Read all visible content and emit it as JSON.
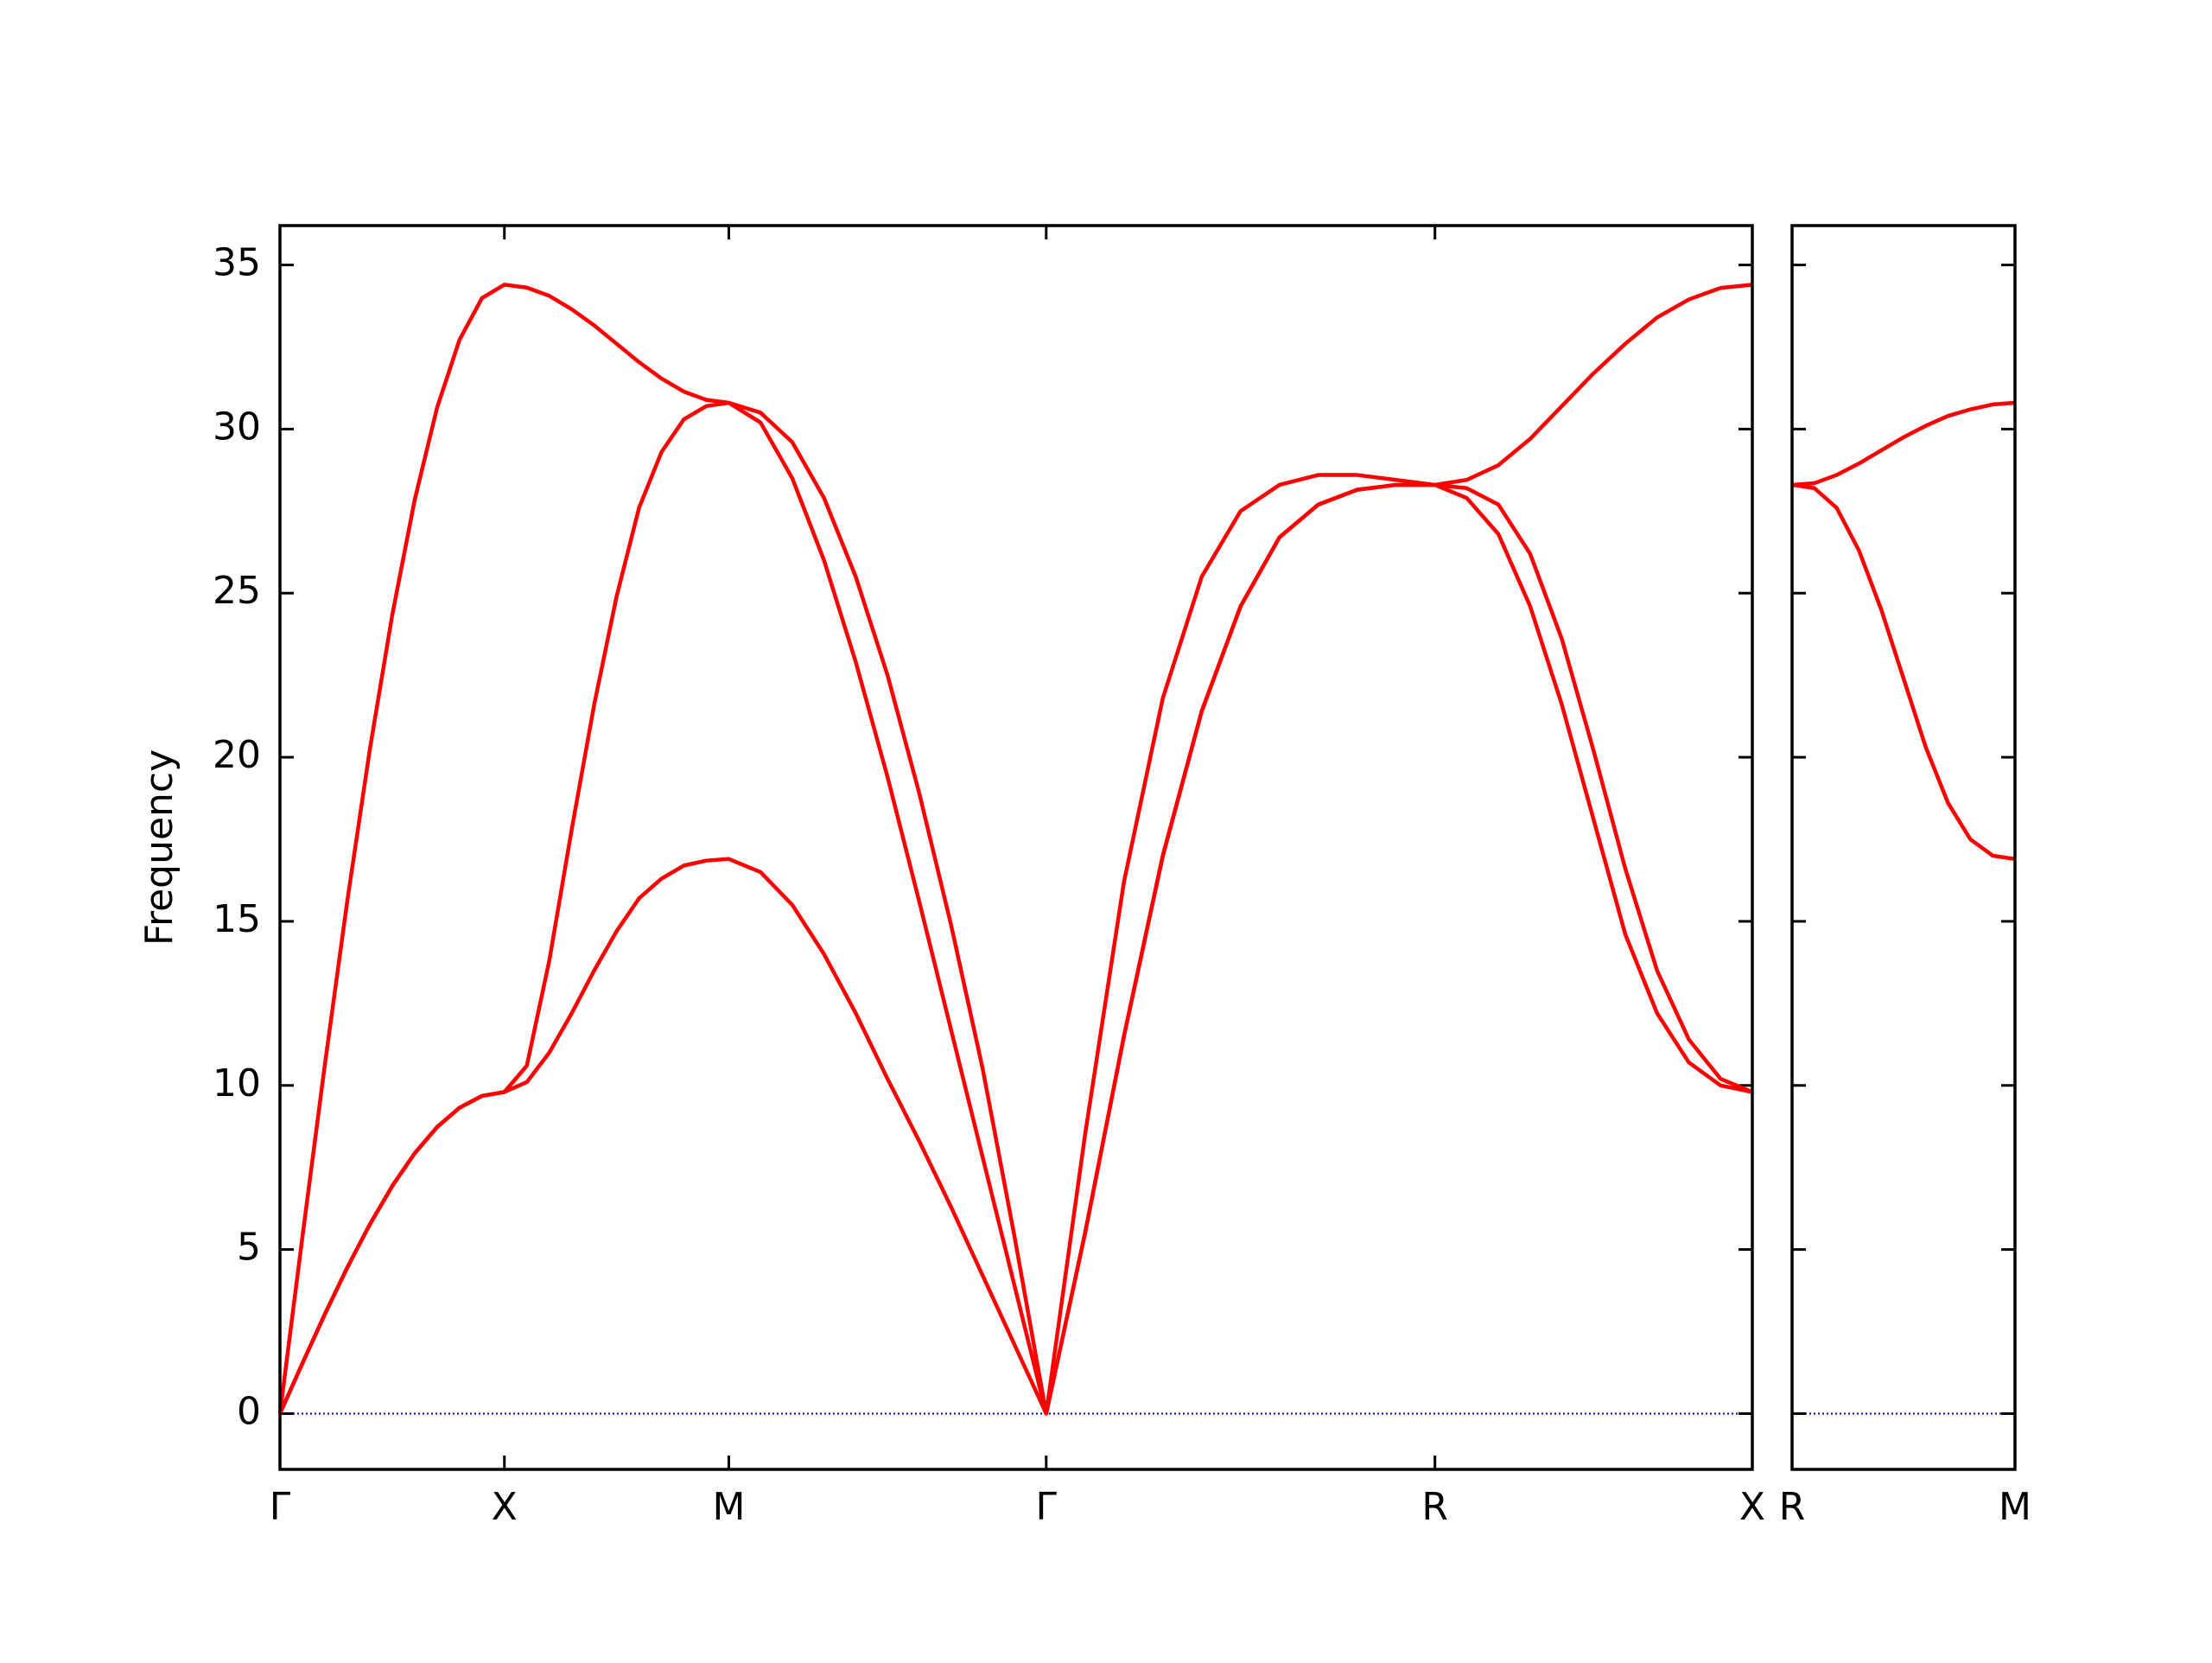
{
  "chart_data": [
    {
      "type": "line",
      "ylabel": "Frequency",
      "x": [
        0,
        0.05,
        0.1,
        0.15,
        0.2,
        0.25,
        0.3,
        0.35,
        0.4,
        0.45,
        0.5,
        0.55,
        0.6,
        0.65,
        0.7,
        0.75,
        0.8,
        0.85,
        0.9,
        0.95,
        1.0,
        1.0707,
        1.1414,
        1.2121,
        1.2828,
        1.3536,
        1.4243,
        1.495,
        1.5657,
        1.6364,
        1.7071,
        1.7937,
        1.8803,
        1.9669,
        2.0535,
        2.1401,
        2.2267,
        2.3133,
        2.3999,
        2.4865,
        2.5731,
        2.6438,
        2.7145,
        2.7852,
        2.8559,
        2.9266,
        2.9973,
        3.068,
        3.1388,
        3.2095,
        3.2802
      ],
      "series": [
        {
          "color": "#ff0000",
          "values": [
            0,
            1.53,
            3.03,
            4.45,
            5.76,
            6.93,
            7.93,
            8.73,
            9.32,
            9.68,
            9.8,
            10.1,
            11.0,
            12.2,
            13.5,
            14.7,
            15.7,
            16.3,
            16.7,
            16.85,
            16.9,
            16.5,
            15.5,
            14.0,
            12.2,
            10.2,
            8.3,
            6.3,
            4.2,
            2.1,
            0,
            5.5,
            11.5,
            17.0,
            21.4,
            24.6,
            26.7,
            27.7,
            28.15,
            28.3,
            28.3,
            27.9,
            26.8,
            24.6,
            21.6,
            18.1,
            14.6,
            12.2,
            10.7,
            10.0,
            9.8
          ]
        },
        {
          "color": "#ff0000",
          "values": [
            0,
            1.53,
            3.03,
            4.45,
            5.76,
            6.93,
            7.93,
            8.73,
            9.32,
            9.68,
            9.8,
            10.6,
            13.8,
            17.8,
            21.6,
            24.9,
            27.6,
            29.3,
            30.3,
            30.7,
            30.8,
            30.2,
            28.5,
            26.0,
            22.9,
            19.4,
            15.6,
            11.7,
            7.8,
            3.9,
            0,
            5.5,
            11.5,
            17.0,
            21.4,
            24.6,
            26.7,
            27.7,
            28.15,
            28.3,
            28.3,
            28.2,
            27.7,
            26.2,
            23.6,
            20.2,
            16.6,
            13.5,
            11.4,
            10.2,
            9.8
          ]
        },
        {
          "color": "#ff0000",
          "values": [
            0,
            5.38,
            10.63,
            15.62,
            20.22,
            24.32,
            27.83,
            30.65,
            32.72,
            33.99,
            34.4,
            34.31,
            34.06,
            33.65,
            33.16,
            32.6,
            32.04,
            31.54,
            31.14,
            30.89,
            30.8,
            30.5,
            29.6,
            27.9,
            25.5,
            22.5,
            18.9,
            14.9,
            10.5,
            5.4,
            0,
            8.5,
            16.2,
            21.8,
            25.5,
            27.5,
            28.3,
            28.6,
            28.6,
            28.45,
            28.3,
            28.45,
            28.9,
            29.7,
            30.7,
            31.7,
            32.6,
            33.4,
            33.95,
            34.3,
            34.4
          ]
        }
      ],
      "xlim": [
        0,
        3.2802
      ],
      "ylim": [
        -1.7,
        36.2
      ],
      "xticks": [
        {
          "value": 0,
          "label": "Γ"
        },
        {
          "value": 0.5,
          "label": "X"
        },
        {
          "value": 1.0,
          "label": "M"
        },
        {
          "value": 1.7071,
          "label": "Γ"
        },
        {
          "value": 2.5731,
          "label": "R"
        },
        {
          "value": 3.2802,
          "label": "X"
        }
      ],
      "yticks": [
        0,
        5,
        10,
        15,
        20,
        25,
        30,
        35
      ],
      "ytick_labels": true,
      "hlines": [
        0
      ],
      "hline_color": "#0000aa"
    },
    {
      "type": "line",
      "x": [
        3.2802,
        3.3302,
        3.3802,
        3.4302,
        3.4802,
        3.5302,
        3.5802,
        3.6302,
        3.6802,
        3.7302,
        3.7802
      ],
      "series": [
        {
          "color": "#ff0000",
          "values": [
            28.3,
            28.2,
            27.6,
            26.3,
            24.5,
            22.4,
            20.3,
            18.6,
            17.5,
            17.0,
            16.9
          ]
        },
        {
          "color": "#ff0000",
          "values": [
            28.3,
            28.35,
            28.6,
            28.95,
            29.35,
            29.75,
            30.1,
            30.4,
            30.6,
            30.75,
            30.8
          ]
        }
      ],
      "xlim": [
        3.2802,
        3.7802
      ],
      "ylim": [
        -1.7,
        36.2
      ],
      "xticks": [
        {
          "value": 3.2802,
          "label": "R"
        },
        {
          "value": 3.7802,
          "label": "M"
        }
      ],
      "yticks": [
        0,
        5,
        10,
        15,
        20,
        25,
        30,
        35
      ],
      "ytick_labels": false,
      "hlines": [
        0
      ],
      "hline_color": "#0000aa"
    }
  ]
}
